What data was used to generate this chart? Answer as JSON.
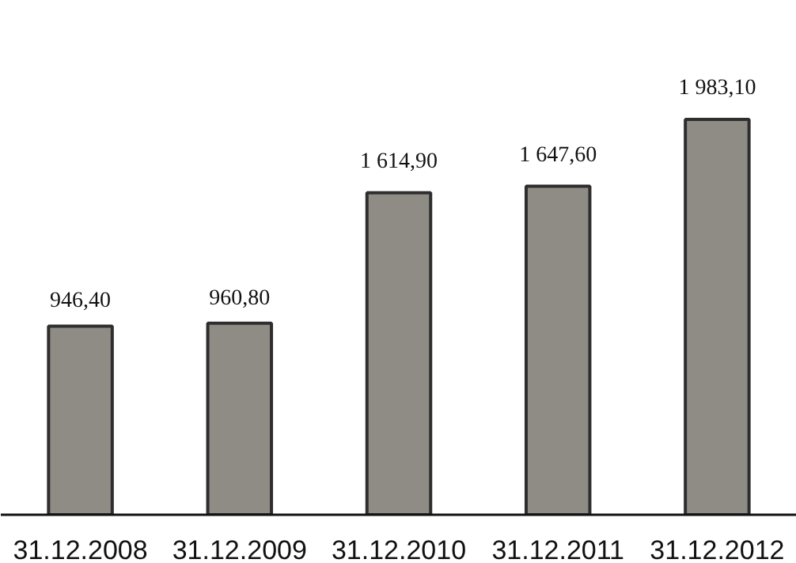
{
  "chart_data": {
    "type": "bar",
    "categories": [
      "31.12.2008",
      "31.12.2009",
      "31.12.2010",
      "31.12.2011",
      "31.12.2012"
    ],
    "values": [
      946.4,
      960.8,
      1614.9,
      1647.6,
      1983.1
    ],
    "value_labels": [
      "946,40",
      "960,80",
      "1 614,90",
      "1 647,60",
      "1 983,10"
    ],
    "color": "#8f8c86",
    "grid": false
  }
}
